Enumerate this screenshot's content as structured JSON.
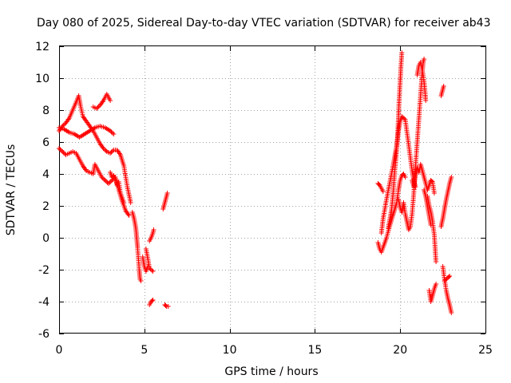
{
  "chart_data": {
    "type": "scatter",
    "title": "Day 080 of 2025, Sidereal Day-to-day VTEC variation (SDTVAR) for receiver ab43",
    "xlabel": "GPS time / hours",
    "ylabel": "SDTVAR / TECUs",
    "xlim": [
      0,
      25
    ],
    "ylim": [
      -6,
      12
    ],
    "xticks": [
      0,
      5,
      10,
      15,
      20,
      25
    ],
    "yticks": [
      -6,
      -4,
      -2,
      0,
      2,
      4,
      6,
      8,
      10,
      12
    ],
    "grid": true,
    "marker": "+",
    "color": "#ff0000",
    "series": [
      {
        "name": "SDTVAR",
        "segments": [
          [
            [
              0.0,
              6.7
            ],
            [
              0.2,
              7.0
            ],
            [
              0.4,
              7.2
            ],
            [
              0.6,
              7.5
            ],
            [
              0.8,
              8.0
            ],
            [
              1.0,
              8.5
            ],
            [
              1.15,
              8.9
            ],
            [
              1.25,
              8.3
            ],
            [
              1.4,
              7.6
            ],
            [
              1.6,
              7.3
            ],
            [
              1.8,
              7.0
            ],
            [
              2.0,
              6.7
            ],
            [
              2.2,
              6.3
            ],
            [
              2.4,
              5.9
            ],
            [
              2.6,
              5.6
            ],
            [
              2.8,
              5.4
            ],
            [
              3.0,
              5.3
            ],
            [
              3.2,
              5.5
            ],
            [
              3.4,
              5.5
            ],
            [
              3.6,
              5.2
            ],
            [
              3.8,
              4.5
            ],
            [
              4.0,
              3.2
            ],
            [
              4.2,
              2.2
            ]
          ],
          [
            [
              0.0,
              6.9
            ],
            [
              0.3,
              6.8
            ],
            [
              0.6,
              6.6
            ],
            [
              0.9,
              6.5
            ],
            [
              1.2,
              6.3
            ],
            [
              1.5,
              6.5
            ],
            [
              1.8,
              6.7
            ],
            [
              2.1,
              6.9
            ],
            [
              2.4,
              7.0
            ],
            [
              2.7,
              6.9
            ],
            [
              3.0,
              6.7
            ],
            [
              3.2,
              6.5
            ]
          ],
          [
            [
              0.0,
              5.6
            ],
            [
              0.2,
              5.4
            ],
            [
              0.4,
              5.2
            ],
            [
              0.6,
              5.3
            ],
            [
              0.8,
              5.4
            ],
            [
              1.0,
              5.3
            ],
            [
              1.2,
              4.9
            ],
            [
              1.4,
              4.5
            ],
            [
              1.6,
              4.2
            ],
            [
              1.8,
              4.1
            ],
            [
              2.0,
              4.0
            ],
            [
              2.1,
              4.6
            ],
            [
              2.3,
              4.2
            ],
            [
              2.5,
              3.8
            ],
            [
              2.7,
              3.6
            ],
            [
              2.9,
              3.4
            ],
            [
              3.1,
              3.6
            ],
            [
              3.3,
              3.8
            ],
            [
              3.5,
              3.0
            ],
            [
              3.7,
              2.3
            ],
            [
              3.9,
              1.7
            ],
            [
              4.1,
              1.4
            ]
          ],
          [
            [
              2.0,
              8.2
            ],
            [
              2.2,
              8.1
            ],
            [
              2.4,
              8.3
            ],
            [
              2.6,
              8.6
            ],
            [
              2.8,
              9.0
            ],
            [
              3.0,
              8.6
            ]
          ],
          [
            [
              3.0,
              4.1
            ],
            [
              3.1,
              3.8
            ],
            [
              3.2,
              3.9
            ],
            [
              3.3,
              3.7
            ],
            [
              3.4,
              3.3
            ],
            [
              3.5,
              3.5
            ],
            [
              3.6,
              2.8
            ],
            [
              3.7,
              2.5
            ],
            [
              3.8,
              2.2
            ]
          ],
          [
            [
              4.3,
              1.6
            ],
            [
              4.4,
              1.2
            ],
            [
              4.5,
              0.6
            ],
            [
              4.55,
              0.0
            ],
            [
              4.6,
              -0.6
            ],
            [
              4.65,
              -1.3
            ],
            [
              4.7,
              -2.0
            ],
            [
              4.75,
              -2.6
            ],
            [
              4.8,
              -2.7
            ]
          ],
          [
            [
              4.9,
              -1.2
            ],
            [
              5.0,
              -1.8
            ],
            [
              5.1,
              -2.1
            ],
            [
              5.2,
              -1.8
            ]
          ],
          [
            [
              5.1,
              -0.7
            ],
            [
              5.3,
              -1.9
            ],
            [
              5.5,
              -2.1
            ]
          ],
          [
            [
              5.3,
              -0.2
            ],
            [
              5.4,
              0.0
            ],
            [
              5.5,
              0.3
            ],
            [
              5.55,
              0.5
            ]
          ],
          [
            [
              5.3,
              -4.2
            ],
            [
              5.4,
              -4.0
            ],
            [
              5.5,
              -3.9
            ]
          ],
          [
            [
              6.1,
              1.8
            ],
            [
              6.2,
              2.2
            ],
            [
              6.3,
              2.6
            ],
            [
              6.35,
              2.8
            ]
          ],
          [
            [
              6.2,
              -4.2
            ],
            [
              6.3,
              -4.3
            ],
            [
              6.4,
              -4.3
            ]
          ],
          [
            [
              18.7,
              3.4
            ],
            [
              18.8,
              3.3
            ],
            [
              18.9,
              3.1
            ],
            [
              19.0,
              2.9
            ]
          ],
          [
            [
              18.7,
              -0.3
            ],
            [
              18.8,
              -0.7
            ],
            [
              18.9,
              -0.9
            ],
            [
              19.0,
              -0.6
            ],
            [
              19.2,
              0.0
            ],
            [
              19.4,
              0.8
            ],
            [
              19.6,
              1.5
            ],
            [
              19.8,
              2.2
            ],
            [
              19.9,
              3.0
            ],
            [
              20.0,
              3.6
            ],
            [
              20.1,
              3.9
            ],
            [
              20.2,
              4.0
            ],
            [
              20.3,
              3.8
            ]
          ],
          [
            [
              18.9,
              0.3
            ],
            [
              19.0,
              1.2
            ],
            [
              19.2,
              2.4
            ],
            [
              19.4,
              3.5
            ],
            [
              19.6,
              4.6
            ],
            [
              19.7,
              5.2
            ],
            [
              19.8,
              5.8
            ],
            [
              19.9,
              6.7
            ],
            [
              20.0,
              7.3
            ],
            [
              20.1,
              7.6
            ],
            [
              20.3,
              7.4
            ],
            [
              20.4,
              6.6
            ],
            [
              20.5,
              5.8
            ],
            [
              20.6,
              5.0
            ],
            [
              20.7,
              4.2
            ],
            [
              20.8,
              3.6
            ],
            [
              20.9,
              3.2
            ]
          ],
          [
            [
              19.3,
              0.6
            ],
            [
              19.5,
              1.8
            ],
            [
              19.6,
              3.0
            ],
            [
              19.7,
              4.4
            ],
            [
              19.8,
              5.6
            ],
            [
              19.85,
              6.4
            ],
            [
              19.9,
              7.6
            ],
            [
              19.95,
              8.8
            ],
            [
              20.0,
              9.8
            ],
            [
              20.05,
              10.8
            ],
            [
              20.1,
              11.6
            ]
          ],
          [
            [
              19.9,
              2.4
            ],
            [
              20.0,
              1.9
            ],
            [
              20.1,
              1.6
            ],
            [
              20.2,
              2.2
            ],
            [
              20.3,
              1.5
            ],
            [
              20.4,
              1.0
            ],
            [
              20.5,
              0.5
            ],
            [
              20.6,
              0.7
            ],
            [
              20.7,
              1.5
            ],
            [
              20.8,
              2.8
            ],
            [
              20.9,
              4.5
            ],
            [
              21.0,
              6.0
            ],
            [
              21.1,
              7.5
            ],
            [
              21.2,
              9.0
            ],
            [
              21.3,
              10.5
            ],
            [
              21.35,
              11.0
            ],
            [
              21.4,
              11.2
            ]
          ],
          [
            [
              21.0,
              10.2
            ],
            [
              21.1,
              10.8
            ],
            [
              21.2,
              11.0
            ],
            [
              21.3,
              10.5
            ],
            [
              21.4,
              9.8
            ],
            [
              21.5,
              8.6
            ]
          ],
          [
            [
              20.7,
              3.6
            ],
            [
              20.8,
              3.2
            ],
            [
              20.9,
              4.0
            ],
            [
              21.0,
              4.4
            ],
            [
              21.1,
              4.1
            ],
            [
              21.2,
              4.6
            ],
            [
              21.3,
              4.2
            ],
            [
              21.4,
              3.8
            ],
            [
              21.5,
              3.4
            ],
            [
              21.6,
              3.0
            ],
            [
              21.7,
              3.3
            ],
            [
              21.8,
              3.6
            ],
            [
              21.9,
              3.5
            ],
            [
              22.0,
              2.8
            ]
          ],
          [
            [
              21.4,
              3.0
            ],
            [
              21.5,
              2.6
            ],
            [
              21.6,
              2.0
            ],
            [
              21.7,
              1.4
            ],
            [
              21.8,
              0.8
            ]
          ],
          [
            [
              21.6,
              2.6
            ],
            [
              21.7,
              2.0
            ],
            [
              21.8,
              1.6
            ],
            [
              21.9,
              1.0
            ],
            [
              22.0,
              0.2
            ],
            [
              22.1,
              -1.5
            ]
          ],
          [
            [
              21.7,
              -3.3
            ],
            [
              21.8,
              -4.0
            ],
            [
              21.9,
              -3.6
            ],
            [
              22.0,
              -3.2
            ],
            [
              22.1,
              -2.9
            ]
          ],
          [
            [
              22.4,
              8.9
            ],
            [
              22.45,
              9.1
            ],
            [
              22.5,
              9.3
            ],
            [
              22.55,
              9.5
            ]
          ],
          [
            [
              22.5,
              -1.8
            ],
            [
              22.6,
              -2.6
            ],
            [
              22.7,
              -3.3
            ],
            [
              22.8,
              -3.8
            ],
            [
              22.9,
              -4.2
            ],
            [
              23.0,
              -4.7
            ]
          ],
          [
            [
              22.6,
              -2.7
            ],
            [
              22.8,
              -2.5
            ],
            [
              22.9,
              -2.4
            ]
          ],
          [
            [
              22.4,
              0.7
            ],
            [
              22.5,
              1.2
            ],
            [
              22.6,
              1.8
            ],
            [
              22.7,
              2.4
            ],
            [
              22.8,
              2.9
            ],
            [
              22.9,
              3.4
            ],
            [
              23.0,
              3.8
            ]
          ]
        ]
      }
    ]
  }
}
